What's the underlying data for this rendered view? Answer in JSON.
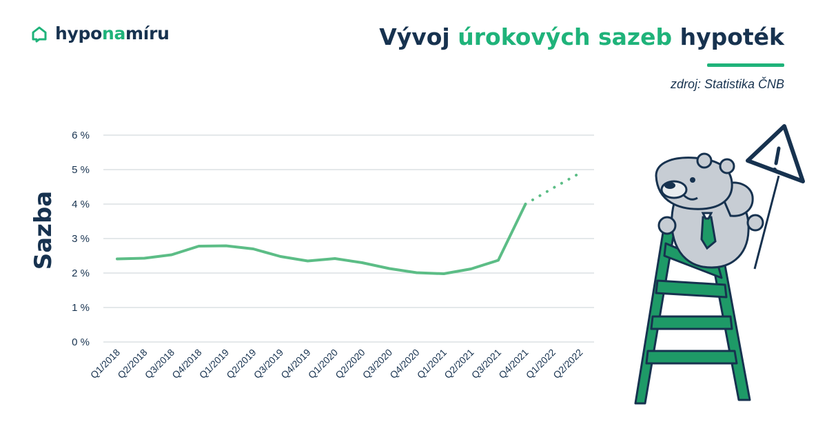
{
  "brand": {
    "part1": "hypo",
    "part2": "na",
    "part3": "míru"
  },
  "header": {
    "title_part1": "Vývoj ",
    "title_part2": "úrokových sazeb",
    "title_part3": " hypoték",
    "source": "zdroj: Statistika ČNB"
  },
  "colors": {
    "brand_green": "#1fb37a",
    "line_green": "#5cbd86",
    "navy": "#17324f",
    "grid": "#d4d9de"
  },
  "chart_data": {
    "type": "line",
    "title": "",
    "xlabel": "",
    "ylabel": "Sazba",
    "categories": [
      "Q1/2018",
      "Q2/2018",
      "Q3/2018",
      "Q4/2018",
      "Q1/2019",
      "Q2/2019",
      "Q3/2019",
      "Q4/2019",
      "Q1/2020",
      "Q2/2020",
      "Q3/2020",
      "Q4/2020",
      "Q1/2021",
      "Q2/2021",
      "Q3/2021",
      "Q4/2021",
      "Q1/2022",
      "Q2/2022"
    ],
    "series": [
      {
        "style": "solid",
        "values": [
          2.41,
          2.43,
          2.53,
          2.78,
          2.79,
          2.7,
          2.48,
          2.35,
          2.42,
          2.3,
          2.13,
          2.01,
          1.98,
          2.12,
          2.37,
          4.0,
          null,
          null
        ]
      },
      {
        "style": "dotted",
        "values": [
          null,
          null,
          null,
          null,
          null,
          null,
          null,
          null,
          null,
          null,
          null,
          null,
          null,
          null,
          null,
          4.0,
          4.46,
          4.9
        ]
      }
    ],
    "yticks": [
      "0 %",
      "1 %",
      "2 %",
      "3 %",
      "4 %",
      "5 %",
      "6 %"
    ],
    "ylim": [
      0,
      6
    ],
    "grid": true,
    "legend": "none"
  }
}
